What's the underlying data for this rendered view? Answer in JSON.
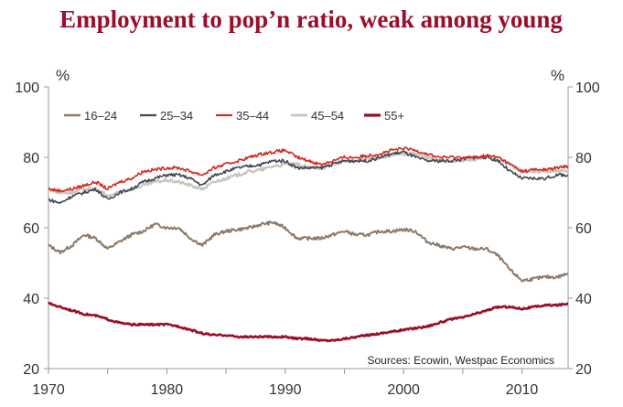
{
  "chart_data": {
    "type": "line",
    "title": "Employment to pop’n ratio, weak among young",
    "ylabel_left": "%",
    "ylabel_right": "%",
    "xlim": [
      1970,
      2013.9
    ],
    "ylim": [
      20,
      100
    ],
    "x_ticks": [
      1970,
      1980,
      1990,
      2000,
      2010
    ],
    "x_tick_labels": [
      "1970",
      "1980",
      "1990",
      "2000",
      "2010"
    ],
    "y_ticks": [
      20,
      40,
      60,
      80,
      100
    ],
    "y_tick_labels": [
      "20",
      "40",
      "60",
      "80",
      "100"
    ],
    "grid": false,
    "legend_position": "top-left",
    "source_note": "Sources: Ecowin, Westpac Economics",
    "series": [
      {
        "name": "16–24",
        "color": "#8c7a6b",
        "width": 2,
        "points": [
          [
            1970,
            55
          ],
          [
            1971,
            53
          ],
          [
            1972,
            55
          ],
          [
            1973,
            58
          ],
          [
            1974,
            57
          ],
          [
            1975,
            54
          ],
          [
            1976,
            56
          ],
          [
            1977,
            58
          ],
          [
            1978,
            59
          ],
          [
            1979,
            61
          ],
          [
            1980,
            60
          ],
          [
            1981,
            60
          ],
          [
            1982,
            57
          ],
          [
            1983,
            55
          ],
          [
            1984,
            58
          ],
          [
            1985,
            59
          ],
          [
            1986,
            59.5
          ],
          [
            1987,
            60
          ],
          [
            1988,
            61
          ],
          [
            1989,
            61.5
          ],
          [
            1990,
            60
          ],
          [
            1991,
            57
          ],
          [
            1992,
            57
          ],
          [
            1993,
            57
          ],
          [
            1994,
            58
          ],
          [
            1995,
            59
          ],
          [
            1996,
            58
          ],
          [
            1997,
            58
          ],
          [
            1998,
            59
          ],
          [
            1999,
            59
          ],
          [
            2000,
            59.5
          ],
          [
            2001,
            59
          ],
          [
            2002,
            56
          ],
          [
            2003,
            55
          ],
          [
            2004,
            54
          ],
          [
            2005,
            54.5
          ],
          [
            2006,
            54
          ],
          [
            2007,
            54
          ],
          [
            2008,
            52
          ],
          [
            2009,
            48
          ],
          [
            2010,
            45
          ],
          [
            2011,
            45.5
          ],
          [
            2012,
            46
          ],
          [
            2013,
            46
          ],
          [
            2013.9,
            47
          ]
        ]
      },
      {
        "name": "25–34",
        "color": "#404a55",
        "width": 1.6,
        "points": [
          [
            1970,
            68
          ],
          [
            1971,
            67
          ],
          [
            1972,
            69
          ],
          [
            1973,
            70
          ],
          [
            1974,
            71
          ],
          [
            1975,
            68
          ],
          [
            1976,
            70
          ],
          [
            1977,
            71
          ],
          [
            1978,
            73
          ],
          [
            1979,
            74
          ],
          [
            1980,
            75
          ],
          [
            1981,
            75
          ],
          [
            1982,
            74
          ],
          [
            1983,
            72
          ],
          [
            1984,
            75
          ],
          [
            1985,
            76
          ],
          [
            1986,
            77
          ],
          [
            1987,
            77.5
          ],
          [
            1988,
            78
          ],
          [
            1989,
            79
          ],
          [
            1990,
            79
          ],
          [
            1991,
            77
          ],
          [
            1992,
            77
          ],
          [
            1993,
            77
          ],
          [
            1994,
            78
          ],
          [
            1995,
            79
          ],
          [
            1996,
            79
          ],
          [
            1997,
            79
          ],
          [
            1998,
            80
          ],
          [
            1999,
            81
          ],
          [
            2000,
            81.5
          ],
          [
            2001,
            80
          ],
          [
            2002,
            79
          ],
          [
            2003,
            79
          ],
          [
            2004,
            79
          ],
          [
            2005,
            79.5
          ],
          [
            2006,
            80
          ],
          [
            2007,
            80
          ],
          [
            2008,
            79
          ],
          [
            2009,
            76
          ],
          [
            2010,
            74
          ],
          [
            2011,
            74
          ],
          [
            2012,
            74
          ],
          [
            2013,
            75
          ],
          [
            2013.9,
            75
          ]
        ]
      },
      {
        "name": "35–44",
        "color": "#d42a20",
        "width": 1.6,
        "points": [
          [
            1970,
            71
          ],
          [
            1971,
            70.5
          ],
          [
            1972,
            71
          ],
          [
            1973,
            72
          ],
          [
            1974,
            73
          ],
          [
            1975,
            71
          ],
          [
            1976,
            73
          ],
          [
            1977,
            74
          ],
          [
            1978,
            76
          ],
          [
            1979,
            76.5
          ],
          [
            1980,
            77
          ],
          [
            1981,
            77
          ],
          [
            1982,
            76
          ],
          [
            1983,
            75
          ],
          [
            1984,
            77
          ],
          [
            1985,
            78
          ],
          [
            1986,
            79
          ],
          [
            1987,
            80
          ],
          [
            1988,
            81
          ],
          [
            1989,
            81.5
          ],
          [
            1990,
            82
          ],
          [
            1991,
            80
          ],
          [
            1992,
            79
          ],
          [
            1993,
            78
          ],
          [
            1994,
            79
          ],
          [
            1995,
            80
          ],
          [
            1996,
            80
          ],
          [
            1997,
            80.5
          ],
          [
            1998,
            81
          ],
          [
            1999,
            82
          ],
          [
            2000,
            82.5
          ],
          [
            2001,
            82
          ],
          [
            2002,
            81
          ],
          [
            2003,
            80
          ],
          [
            2004,
            80
          ],
          [
            2005,
            80
          ],
          [
            2006,
            80
          ],
          [
            2007,
            80.5
          ],
          [
            2008,
            80
          ],
          [
            2009,
            78
          ],
          [
            2010,
            76
          ],
          [
            2011,
            76.5
          ],
          [
            2012,
            76.5
          ],
          [
            2013,
            77
          ],
          [
            2013.9,
            77.5
          ]
        ]
      },
      {
        "name": "45–54",
        "color": "#c9c4bc",
        "width": 2.2,
        "points": [
          [
            1970,
            71
          ],
          [
            1971,
            70
          ],
          [
            1972,
            70
          ],
          [
            1973,
            71
          ],
          [
            1974,
            71
          ],
          [
            1975,
            69
          ],
          [
            1976,
            70
          ],
          [
            1977,
            71
          ],
          [
            1978,
            72
          ],
          [
            1979,
            73
          ],
          [
            1980,
            73.5
          ],
          [
            1981,
            73
          ],
          [
            1982,
            72
          ],
          [
            1983,
            71
          ],
          [
            1984,
            73
          ],
          [
            1985,
            74
          ],
          [
            1986,
            75
          ],
          [
            1987,
            76
          ],
          [
            1988,
            76.5
          ],
          [
            1989,
            77.5
          ],
          [
            1990,
            78
          ],
          [
            1991,
            78
          ],
          [
            1992,
            77
          ],
          [
            1993,
            77
          ],
          [
            1994,
            78
          ],
          [
            1995,
            79
          ],
          [
            1996,
            79
          ],
          [
            1997,
            79.5
          ],
          [
            1998,
            80
          ],
          [
            1999,
            80.5
          ],
          [
            2000,
            81
          ],
          [
            2001,
            81
          ],
          [
            2002,
            80
          ],
          [
            2003,
            79
          ],
          [
            2004,
            79
          ],
          [
            2005,
            79
          ],
          [
            2006,
            79.5
          ],
          [
            2007,
            80
          ],
          [
            2008,
            79.5
          ],
          [
            2009,
            78
          ],
          [
            2010,
            76
          ],
          [
            2011,
            76
          ],
          [
            2012,
            76
          ],
          [
            2013,
            76
          ],
          [
            2013.9,
            76
          ]
        ]
      },
      {
        "name": "55+",
        "color": "#9b0d2b",
        "width": 2.6,
        "points": [
          [
            1970,
            38.5
          ],
          [
            1971,
            37.5
          ],
          [
            1972,
            36.5
          ],
          [
            1973,
            35.5
          ],
          [
            1974,
            35
          ],
          [
            1975,
            34
          ],
          [
            1976,
            33
          ],
          [
            1977,
            32.5
          ],
          [
            1978,
            32.5
          ],
          [
            1979,
            32.5
          ],
          [
            1980,
            32.5
          ],
          [
            1981,
            32
          ],
          [
            1982,
            31
          ],
          [
            1983,
            30
          ],
          [
            1984,
            29.5
          ],
          [
            1985,
            29.5
          ],
          [
            1986,
            29
          ],
          [
            1987,
            29
          ],
          [
            1988,
            29
          ],
          [
            1989,
            29
          ],
          [
            1990,
            29
          ],
          [
            1991,
            28.5
          ],
          [
            1992,
            28.5
          ],
          [
            1993,
            28
          ],
          [
            1994,
            28
          ],
          [
            1995,
            28.5
          ],
          [
            1996,
            29
          ],
          [
            1997,
            29.5
          ],
          [
            1998,
            30
          ],
          [
            1999,
            30.5
          ],
          [
            2000,
            31
          ],
          [
            2001,
            31.5
          ],
          [
            2002,
            32
          ],
          [
            2003,
            33
          ],
          [
            2004,
            34
          ],
          [
            2005,
            34.5
          ],
          [
            2006,
            35.5
          ],
          [
            2007,
            36.5
          ],
          [
            2008,
            37.5
          ],
          [
            2009,
            37.5
          ],
          [
            2010,
            37
          ],
          [
            2011,
            37.5
          ],
          [
            2012,
            38
          ],
          [
            2013,
            38
          ],
          [
            2013.9,
            38.5
          ]
        ]
      }
    ]
  },
  "colors": {
    "title": "#9b0d2b",
    "axis": "#999999",
    "text": "#333333"
  }
}
